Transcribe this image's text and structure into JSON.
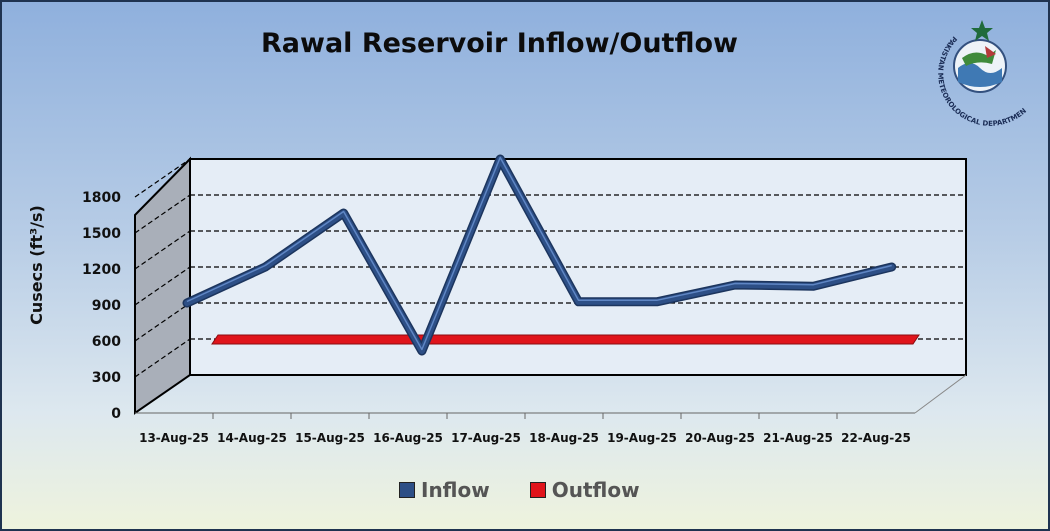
{
  "chart_data": {
    "type": "line",
    "title": "Rawal Reservoir Inflow/Outflow",
    "ylabel": "Cusecs (ft³/s)",
    "xlabel": "",
    "categories": [
      "13-Aug-25",
      "14-Aug-25",
      "15-Aug-25",
      "16-Aug-25",
      "17-Aug-25",
      "18-Aug-25",
      "19-Aug-25",
      "20-Aug-25",
      "21-Aug-25",
      "22-Aug-25"
    ],
    "series": [
      {
        "name": "Inflow",
        "color": "#2d4f86",
        "values": [
          600,
          900,
          1350,
          200,
          1800,
          610,
          610,
          750,
          740,
          900
        ]
      },
      {
        "name": "Outflow",
        "color": "#e0141b",
        "values": [
          300,
          300,
          300,
          300,
          300,
          300,
          300,
          300,
          300,
          300
        ]
      }
    ],
    "ylim": [
      0,
      1800
    ],
    "yticks": [
      0,
      300,
      600,
      900,
      1200,
      1500,
      1800
    ],
    "grid": true,
    "style": "3d",
    "legend_position": "bottom"
  },
  "logo": {
    "name": "Pakistan Meteorological Department",
    "text": "PAKISTAN METEOROLOGICAL DEPARTMENT"
  }
}
